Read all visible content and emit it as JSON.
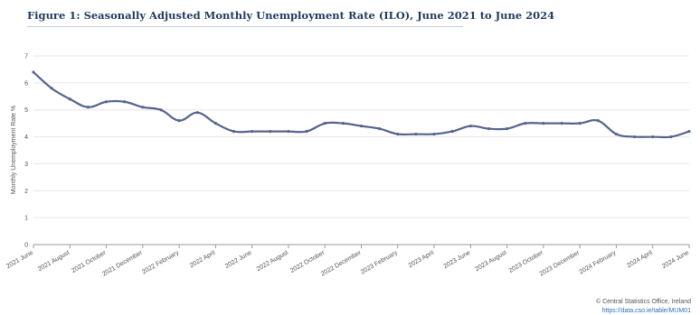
{
  "chart_data": {
    "type": "line",
    "title": "Figure 1: Seasonally Adjusted Monthly Unemployment Rate (ILO), June 2021 to June 2024",
    "xlabel": "",
    "ylabel": "Monthly Unemployment Rate %",
    "ylim": [
      0,
      7
    ],
    "yticks": [
      0,
      1,
      2,
      3,
      4,
      5,
      6,
      7
    ],
    "grid": true,
    "x": [
      "2021 June",
      "2021 July",
      "2021 August",
      "2021 September",
      "2021 October",
      "2021 November",
      "2021 December",
      "2022 January",
      "2022 February",
      "2022 March",
      "2022 April",
      "2022 May",
      "2022 June",
      "2022 July",
      "2022 August",
      "2022 September",
      "2022 October",
      "2022 November",
      "2022 December",
      "2023 January",
      "2023 February",
      "2023 March",
      "2023 April",
      "2023 May",
      "2023 June",
      "2023 July",
      "2023 August",
      "2023 September",
      "2023 October",
      "2023 November",
      "2023 December",
      "2024 January",
      "2024 February",
      "2024 March",
      "2024 April",
      "2024 May",
      "2024 June"
    ],
    "tick_labels": [
      "2021 June",
      "2021 August",
      "2021 October",
      "2021 December",
      "2022 February",
      "2022 April",
      "2022 June",
      "2022 August",
      "2022 October",
      "2022 December",
      "2023 February",
      "2023 April",
      "2023 June",
      "2023 August",
      "2023 October",
      "2023 December",
      "2024 February",
      "2024 April",
      "2024 June"
    ],
    "series": [
      {
        "values": [
          6.4,
          5.8,
          5.4,
          5.1,
          5.3,
          5.3,
          5.1,
          5.0,
          4.6,
          4.9,
          4.5,
          4.2,
          4.2,
          4.2,
          4.2,
          4.2,
          4.5,
          4.5,
          4.4,
          4.3,
          4.1,
          4.1,
          4.1,
          4.2,
          4.4,
          4.3,
          4.3,
          4.5,
          4.5,
          4.5,
          4.5,
          4.6,
          4.1,
          4.0,
          4.0,
          4.0,
          4.2
        ]
      }
    ],
    "colors": {
      "line": "#55648c",
      "grid": "#e6e6e6",
      "axis": "#999999",
      "title": "#1f3a5f"
    }
  },
  "source": {
    "credit": "© Central Statistics Office, Ireland",
    "link": "https://data.cso.ie/table/MUM01"
  }
}
